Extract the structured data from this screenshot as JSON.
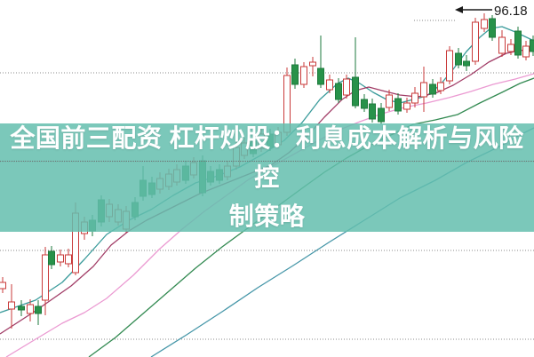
{
  "headline": {
    "line1": "全国前三配资 杠杆炒股：利息成本解析与风险控",
    "line2": "制策略",
    "text_color": "#ffffff",
    "band_color": "rgba(100,190,174,0.85)"
  },
  "annotation": {
    "price_label": "96.18",
    "arrow_glyph": "←"
  },
  "chart_data": {
    "type": "candlestick",
    "style": "china-kline: red hollow = up day, green solid = down day",
    "title": "",
    "xlabel": "",
    "ylabel": "",
    "ylim": [
      58.0,
      98.2
    ],
    "grid": "horizontal dotted",
    "grid_color": "#8a8a8a",
    "gridline_prices": [
      90,
      80,
      70,
      60
    ],
    "marked_high": {
      "price": 96.18,
      "arrow_y_price": 97.1,
      "dotted_segment_price": 95.9
    },
    "colors": {
      "up_stroke": "#c93a3a",
      "up_fill": "#ffffff",
      "down_stroke": "#1e7a3c",
      "down_fill": "#28924a"
    },
    "candles_format": [
      "x_px",
      "open",
      "high",
      "low",
      "close"
    ],
    "candles": [
      [
        3,
        65.7,
        67.0,
        65.2,
        66.4
      ],
      [
        13,
        63.4,
        66.2,
        61.2,
        64.2
      ],
      [
        24,
        63.7,
        64.4,
        62.6,
        63.3
      ],
      [
        34,
        62.9,
        64.5,
        62.0,
        63.9
      ],
      [
        43,
        63.7,
        64.4,
        61.6,
        62.9
      ],
      [
        51,
        64.4,
        70.4,
        62.7,
        69.5
      ],
      [
        58,
        69.9,
        70.5,
        67.9,
        68.4
      ],
      [
        68,
        68.7,
        70.1,
        68.2,
        69.5
      ],
      [
        77,
        68.5,
        70.2,
        68.1,
        69.5
      ],
      [
        85,
        67.5,
        75.4,
        67.2,
        74.2
      ],
      [
        95,
        71.9,
        73.8,
        71.2,
        73.2
      ],
      [
        104,
        73.4,
        74.0,
        71.6,
        72.2
      ],
      [
        114,
        75.7,
        76.2,
        72.7,
        73.2
      ],
      [
        123,
        73.8,
        75.8,
        73.2,
        75.2
      ],
      [
        133,
        73.2,
        75.2,
        72.8,
        74.6
      ],
      [
        142,
        72.4,
        75.0,
        72.0,
        74.4
      ],
      [
        152,
        75.4,
        76.0,
        73.4,
        73.8
      ],
      [
        161,
        77.9,
        79.5,
        75.6,
        76.1
      ],
      [
        171,
        77.6,
        78.3,
        75.9,
        76.3
      ],
      [
        180,
        76.9,
        78.8,
        76.4,
        78.1
      ],
      [
        190,
        77.2,
        79.2,
        76.8,
        78.6
      ],
      [
        199,
        77.7,
        79.7,
        77.3,
        79.1
      ],
      [
        209,
        79.5,
        80.1,
        77.5,
        77.9
      ],
      [
        218,
        78.5,
        80.5,
        78.1,
        79.9
      ],
      [
        228,
        80.1,
        80.7,
        76.1,
        76.5
      ],
      [
        237,
        78.9,
        79.5,
        77.3,
        77.7
      ],
      [
        247,
        79.1,
        79.7,
        77.5,
        77.9
      ],
      [
        256,
        78.3,
        80.1,
        77.9,
        79.5
      ],
      [
        266,
        79.5,
        83.3,
        79.1,
        81.6
      ],
      [
        275,
        80.7,
        82.7,
        80.3,
        82.1
      ],
      [
        285,
        82.3,
        82.9,
        80.5,
        80.9
      ],
      [
        294,
        81.5,
        83.7,
        81.1,
        83.1
      ],
      [
        304,
        83.1,
        83.7,
        81.2,
        81.6
      ],
      [
        313,
        81.9,
        83.9,
        81.5,
        83.3
      ],
      [
        323,
        83.3,
        90.6,
        82.9,
        89.7
      ],
      [
        332,
        90.9,
        91.6,
        88.2,
        88.7
      ],
      [
        342,
        88.7,
        91.2,
        88.3,
        90.7
      ],
      [
        352,
        90.8,
        91.8,
        89.6,
        91.2
      ],
      [
        361,
        90.5,
        94.2,
        88.3,
        88.7
      ],
      [
        371,
        88.1,
        89.8,
        87.7,
        89.2
      ],
      [
        381,
        88.8,
        89.4,
        86.6,
        87.0
      ],
      [
        390,
        87.5,
        89.8,
        87.1,
        89.3
      ],
      [
        400,
        89.5,
        94.0,
        86.0,
        86.3
      ],
      [
        410,
        87.0,
        87.6,
        85.6,
        86.0
      ],
      [
        419,
        86.5,
        87.1,
        84.4,
        84.8
      ],
      [
        429,
        86.0,
        86.6,
        84.2,
        84.5
      ],
      [
        438,
        86.1,
        88.1,
        85.7,
        87.5
      ],
      [
        448,
        87.1,
        87.7,
        85.3,
        85.7
      ],
      [
        458,
        85.9,
        87.2,
        85.5,
        86.6
      ],
      [
        467,
        86.6,
        88.4,
        86.1,
        87.7
      ],
      [
        477,
        87.3,
        90.7,
        85.6,
        88.9
      ],
      [
        487,
        88.7,
        89.3,
        87.2,
        87.6
      ],
      [
        496,
        88.0,
        89.5,
        87.6,
        88.9
      ],
      [
        506,
        89.1,
        93.0,
        88.7,
        92.5
      ],
      [
        516,
        92.2,
        92.8,
        90.5,
        90.9
      ],
      [
        525,
        91.3,
        92.0,
        90.2,
        90.8
      ],
      [
        535,
        91.3,
        96.2,
        90.9,
        95.7
      ],
      [
        545,
        95.0,
        96.7,
        94.6,
        96.0
      ],
      [
        554,
        96.1,
        96.5,
        93.6,
        94.0
      ],
      [
        565,
        92.2,
        94.8,
        91.8,
        94.0
      ],
      [
        575,
        92.4,
        93.8,
        92.0,
        93.2
      ],
      [
        583,
        94.7,
        95.2,
        91.6,
        92.0
      ],
      [
        592,
        91.8,
        93.6,
        91.4,
        93.0
      ],
      [
        600,
        93.7,
        94.2,
        91.9,
        92.4
      ]
    ],
    "moving_averages": [
      {
        "name": "MA5",
        "color": "#3a9b9b",
        "points": [
          [
            0,
            63.0
          ],
          [
            40,
            64.4
          ],
          [
            70,
            66.4
          ],
          [
            95,
            69.0
          ],
          [
            120,
            71.8
          ],
          [
            145,
            73.4
          ],
          [
            170,
            74.6
          ],
          [
            195,
            76.2
          ],
          [
            220,
            77.6
          ],
          [
            245,
            78.4
          ],
          [
            270,
            79.4
          ],
          [
            295,
            80.8
          ],
          [
            320,
            82.4
          ],
          [
            340,
            84.4
          ],
          [
            360,
            87.0
          ],
          [
            380,
            88.8
          ],
          [
            392,
            89.4
          ],
          [
            405,
            88.8
          ],
          [
            420,
            87.8
          ],
          [
            435,
            87.0
          ],
          [
            450,
            86.6
          ],
          [
            465,
            87.0
          ],
          [
            480,
            87.4
          ],
          [
            495,
            88.6
          ],
          [
            510,
            90.4
          ],
          [
            525,
            92.4
          ],
          [
            540,
            94.0
          ],
          [
            552,
            95.0
          ],
          [
            565,
            95.2
          ],
          [
            580,
            94.6
          ],
          [
            601,
            93.6
          ]
        ]
      },
      {
        "name": "MA10",
        "color": "#a13c66",
        "points": [
          [
            0,
            60.6
          ],
          [
            40,
            63.2
          ],
          [
            80,
            66.0
          ],
          [
            105,
            68.2
          ],
          [
            125,
            70.6
          ],
          [
            145,
            72.2
          ],
          [
            165,
            73.4
          ],
          [
            185,
            74.4
          ],
          [
            205,
            75.4
          ],
          [
            225,
            76.4
          ],
          [
            245,
            77.2
          ],
          [
            265,
            78.0
          ],
          [
            285,
            78.8
          ],
          [
            305,
            79.6
          ],
          [
            325,
            81.0
          ],
          [
            345,
            82.8
          ],
          [
            365,
            85.0
          ],
          [
            385,
            87.0
          ],
          [
            400,
            88.0
          ],
          [
            415,
            88.4
          ],
          [
            430,
            88.0
          ],
          [
            450,
            87.5
          ],
          [
            470,
            87.3
          ],
          [
            490,
            87.7
          ],
          [
            510,
            88.6
          ],
          [
            530,
            89.8
          ],
          [
            550,
            91.2
          ],
          [
            570,
            92.2
          ],
          [
            585,
            92.5
          ],
          [
            601,
            92.7
          ]
        ]
      },
      {
        "name": "MA20",
        "color": "#eb9ad2",
        "points": [
          [
            7,
            58.0
          ],
          [
            40,
            60.0
          ],
          [
            70,
            61.8
          ],
          [
            95,
            63.0
          ],
          [
            120,
            64.6
          ],
          [
            150,
            67.2
          ],
          [
            180,
            70.2
          ],
          [
            205,
            72.4
          ],
          [
            230,
            74.4
          ],
          [
            255,
            76.2
          ],
          [
            280,
            78.0
          ],
          [
            305,
            79.4
          ],
          [
            330,
            80.8
          ],
          [
            355,
            82.2
          ],
          [
            380,
            83.5
          ],
          [
            405,
            84.5
          ],
          [
            430,
            85.4
          ],
          [
            455,
            86.1
          ],
          [
            480,
            86.6
          ],
          [
            505,
            87.2
          ],
          [
            530,
            87.9
          ],
          [
            555,
            88.7
          ],
          [
            580,
            89.3
          ],
          [
            601,
            89.9
          ]
        ]
      },
      {
        "name": "MA30",
        "color": "#338a52",
        "points": [
          [
            100,
            58.0
          ],
          [
            130,
            60.2
          ],
          [
            160,
            62.8
          ],
          [
            190,
            65.4
          ],
          [
            220,
            68.0
          ],
          [
            250,
            70.4
          ],
          [
            280,
            72.6
          ],
          [
            310,
            74.8
          ],
          [
            340,
            77.0
          ],
          [
            365,
            78.8
          ],
          [
            390,
            80.4
          ],
          [
            415,
            81.8
          ],
          [
            440,
            83.0
          ],
          [
            465,
            84.2
          ],
          [
            490,
            84.7
          ],
          [
            515,
            85.3
          ],
          [
            540,
            86.6
          ],
          [
            565,
            87.8
          ],
          [
            585,
            88.8
          ],
          [
            601,
            89.4
          ]
        ]
      },
      {
        "name": "MA60",
        "color": "#4596a8",
        "points": [
          [
            170,
            58.0
          ],
          [
            210,
            60.5
          ],
          [
            250,
            63.1
          ],
          [
            290,
            65.8
          ],
          [
            330,
            68.3
          ],
          [
            370,
            70.9
          ],
          [
            410,
            73.4
          ],
          [
            450,
            75.9
          ],
          [
            490,
            77.9
          ],
          [
            525,
            79.9
          ],
          [
            560,
            81.6
          ],
          [
            585,
            83.0
          ],
          [
            601,
            83.8
          ]
        ]
      }
    ]
  }
}
